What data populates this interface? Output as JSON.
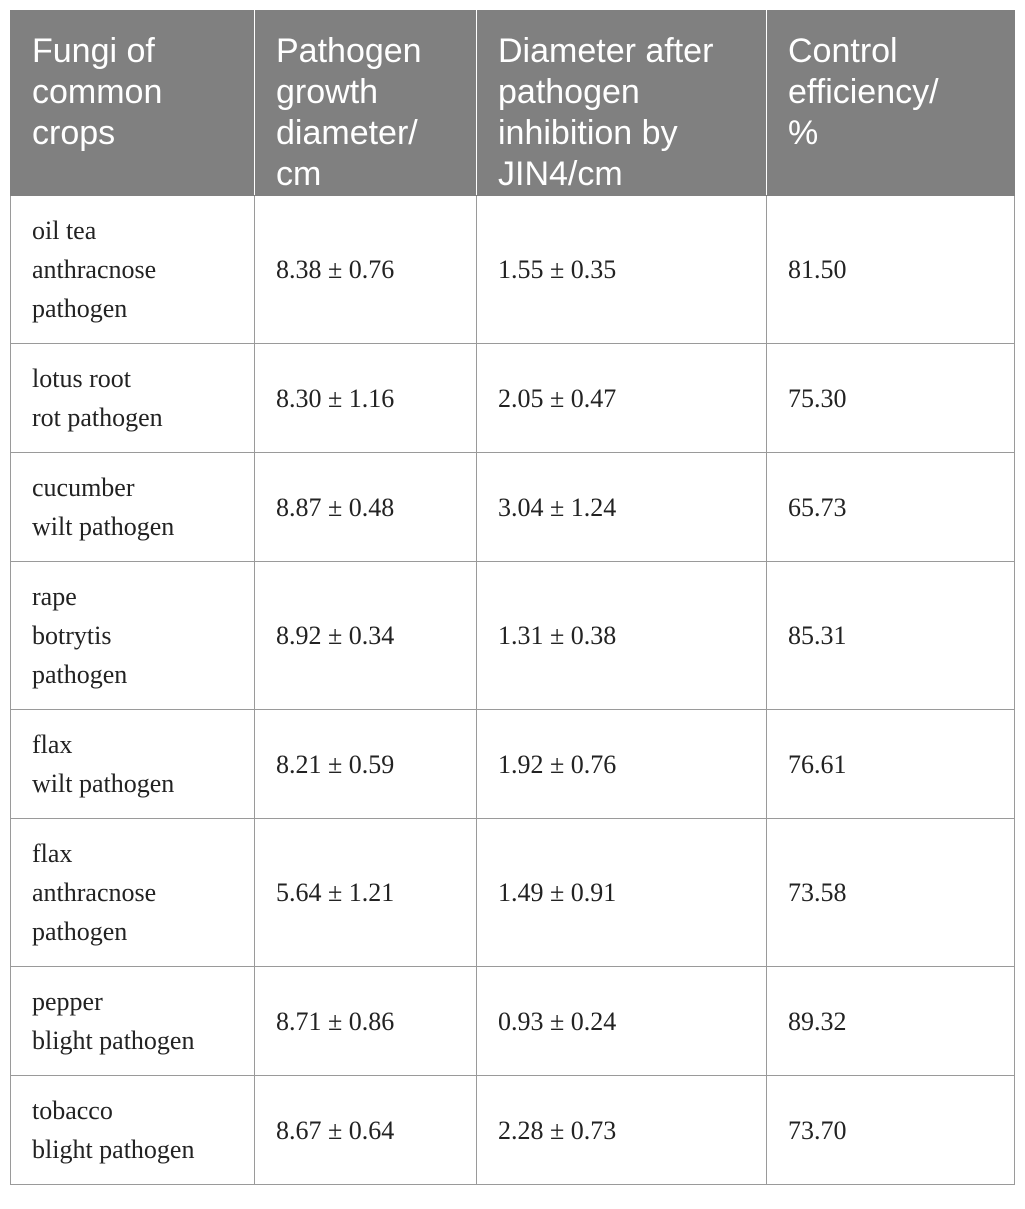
{
  "table": {
    "headers": [
      [
        "Fungi of",
        "common",
        "crops"
      ],
      [
        "Pathogen",
        "growth",
        "diameter/",
        "cm"
      ],
      [
        "Diameter after",
        "pathogen",
        "inhibition by",
        "JIN4/cm"
      ],
      [
        "Control",
        "efficiency/",
        "%"
      ]
    ],
    "rows": [
      {
        "fungi": [
          "oil tea",
          "anthracnose",
          "pathogen"
        ],
        "growth": "8.38 ± 0.76",
        "inhibited": "1.55 ± 0.35",
        "efficiency": "81.50"
      },
      {
        "fungi": [
          "lotus root",
          "rot pathogen"
        ],
        "growth": "8.30 ± 1.16",
        "inhibited": "2.05 ± 0.47",
        "efficiency": "75.30"
      },
      {
        "fungi": [
          "cucumber",
          "wilt pathogen"
        ],
        "growth": "8.87 ± 0.48",
        "inhibited": "3.04 ± 1.24",
        "efficiency": "65.73"
      },
      {
        "fungi": [
          "rape",
          "botrytis",
          "pathogen"
        ],
        "growth": "8.92 ± 0.34",
        "inhibited": "1.31 ± 0.38",
        "efficiency": "85.31"
      },
      {
        "fungi": [
          "flax",
          "wilt pathogen"
        ],
        "growth": "8.21 ± 0.59",
        "inhibited": "1.92 ± 0.76",
        "efficiency": "76.61"
      },
      {
        "fungi": [
          "flax",
          "anthracnose",
          "pathogen"
        ],
        "growth": "5.64 ± 1.21",
        "inhibited": "1.49 ± 0.91",
        "efficiency": "73.58"
      },
      {
        "fungi": [
          "pepper",
          "blight pathogen"
        ],
        "growth": "8.71 ± 0.86",
        "inhibited": "0.93 ± 0.24",
        "efficiency": "89.32"
      },
      {
        "fungi": [
          "tobacco",
          "blight pathogen"
        ],
        "growth": "8.67 ± 0.64",
        "inhibited": "2.28 ± 0.73",
        "efficiency": "73.70"
      }
    ]
  }
}
